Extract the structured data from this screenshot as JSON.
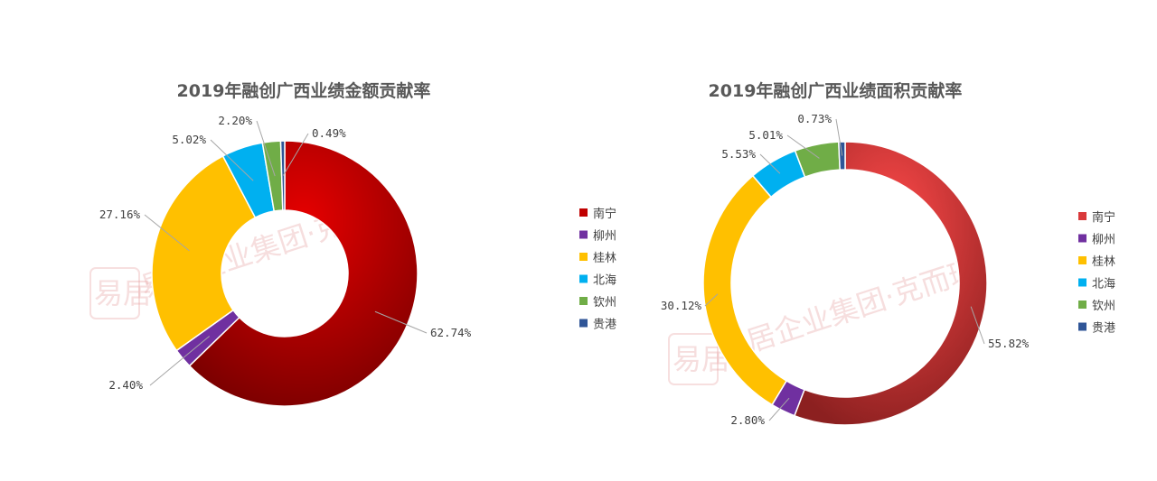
{
  "colors": {
    "nanning_dark": "#c00000",
    "nanning_light": "#e03a3a",
    "liuzhou": "#7030a0",
    "guilin": "#ffc000",
    "beihai": "#00b0f0",
    "qinzhou": "#70ad47",
    "guigang": "#2f5597"
  },
  "watermark": {
    "text": "易居企业集团·克而瑞",
    "seal": "易居"
  },
  "chart_data": [
    {
      "type": "pie",
      "donut": true,
      "title": "2019年融创广西业绩金额贡献率",
      "legend_position": "right",
      "series": [
        {
          "name": "南宁",
          "value": 62.74,
          "label": "62.74%",
          "color": "#c00000"
        },
        {
          "name": "柳州",
          "value": 2.4,
          "label": "2.40%",
          "color": "#7030a0"
        },
        {
          "name": "桂林",
          "value": 27.16,
          "label": "27.16%",
          "color": "#ffc000"
        },
        {
          "name": "北海",
          "value": 5.02,
          "label": "5.02%",
          "color": "#00b0f0"
        },
        {
          "name": "钦州",
          "value": 2.2,
          "label": "2.20%",
          "color": "#70ad47"
        },
        {
          "name": "贵港",
          "value": 0.49,
          "label": "0.49%",
          "color": "#2f5597"
        }
      ]
    },
    {
      "type": "pie",
      "donut": true,
      "title": "2019年融创广西业绩面积贡献率",
      "legend_position": "right",
      "series": [
        {
          "name": "南宁",
          "value": 55.82,
          "label": "55.82%",
          "color": "#d9393b"
        },
        {
          "name": "柳州",
          "value": 2.8,
          "label": "2.80%",
          "color": "#7030a0"
        },
        {
          "name": "桂林",
          "value": 30.12,
          "label": "30.12%",
          "color": "#ffc000"
        },
        {
          "name": "北海",
          "value": 5.53,
          "label": "5.53%",
          "color": "#00b0f0"
        },
        {
          "name": "钦州",
          "value": 5.01,
          "label": "5.01%",
          "color": "#70ad47"
        },
        {
          "name": "贵港",
          "value": 0.73,
          "label": "0.73%",
          "color": "#2f5597"
        }
      ]
    }
  ]
}
